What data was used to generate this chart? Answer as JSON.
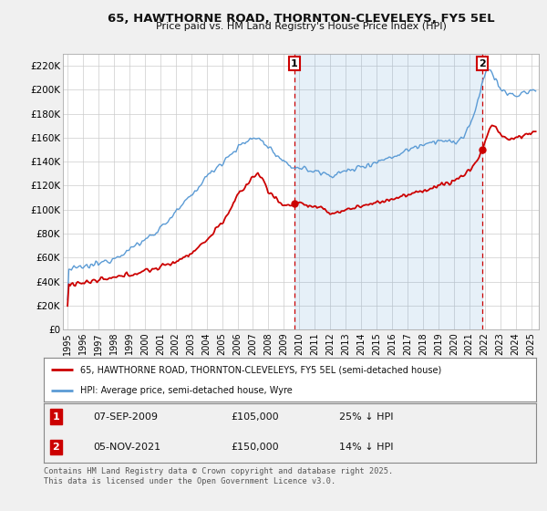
{
  "title_line1": "65, HAWTHORNE ROAD, THORNTON-CLEVELEYS, FY5 5EL",
  "title_line2": "Price paid vs. HM Land Registry's House Price Index (HPI)",
  "ylim": [
    0,
    230000
  ],
  "yticks": [
    0,
    20000,
    40000,
    60000,
    80000,
    100000,
    120000,
    140000,
    160000,
    180000,
    200000,
    220000
  ],
  "ytick_labels": [
    "£0",
    "£20K",
    "£40K",
    "£60K",
    "£80K",
    "£100K",
    "£120K",
    "£140K",
    "£160K",
    "£180K",
    "£200K",
    "£220K"
  ],
  "xlim_start": 1994.7,
  "xlim_end": 2025.5,
  "xticks": [
    1995,
    1996,
    1997,
    1998,
    1999,
    2000,
    2001,
    2002,
    2003,
    2004,
    2005,
    2006,
    2007,
    2008,
    2009,
    2010,
    2011,
    2012,
    2013,
    2014,
    2015,
    2016,
    2017,
    2018,
    2019,
    2020,
    2021,
    2022,
    2023,
    2024,
    2025
  ],
  "hpi_color": "#5b9bd5",
  "hpi_fill_color": "#ddeeff",
  "price_color": "#cc0000",
  "vline_color": "#cc0000",
  "grid_color": "#cccccc",
  "bg_color": "#f0f0f0",
  "plot_bg": "#ffffff",
  "sale1_x": 2009.685,
  "sale1_y": 105000,
  "sale1_label": "1",
  "sale1_date": "07-SEP-2009",
  "sale1_price": "£105,000",
  "sale1_hpi": "25% ↓ HPI",
  "sale2_x": 2021.843,
  "sale2_y": 150000,
  "sale2_label": "2",
  "sale2_date": "05-NOV-2021",
  "sale2_price": "£150,000",
  "sale2_hpi": "14% ↓ HPI",
  "legend_line1": "65, HAWTHORNE ROAD, THORNTON-CLEVELEYS, FY5 5EL (semi-detached house)",
  "legend_line2": "HPI: Average price, semi-detached house, Wyre",
  "footer": "Contains HM Land Registry data © Crown copyright and database right 2025.\nThis data is licensed under the Open Government Licence v3.0."
}
